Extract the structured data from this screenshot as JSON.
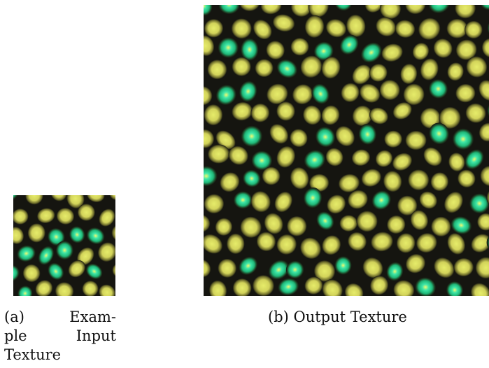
{
  "figure": {
    "panel_a": {
      "label": "(a)",
      "caption_lines": [
        [
          "(a)",
          "Exam-"
        ],
        [
          "ple",
          "Input"
        ],
        [
          "Texture"
        ]
      ]
    },
    "panel_b": {
      "caption": "(b) Output Texture"
    },
    "texture_colors": {
      "dark_border": "#151510",
      "cell_fill": "#d2d35a",
      "cell_highlight": "#e6ec6a",
      "accent_cyan": "#3fe6a8",
      "accent_green": "#1fb878"
    }
  }
}
